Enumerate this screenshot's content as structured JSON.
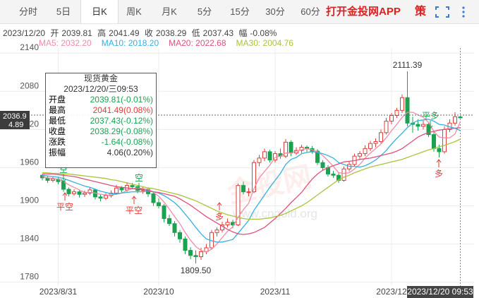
{
  "toolbar": {
    "tabs": [
      "分时",
      "5日",
      "日K",
      "周K",
      "月K",
      "5分",
      "15分",
      "30分",
      "60分"
    ],
    "active": 2,
    "app_link": "打开金投网APP",
    "strategy": "策"
  },
  "quote": {
    "date": "2023/12/20",
    "open_label": "开",
    "high_label": "高",
    "close_label": "收",
    "low_label": "低",
    "change_label": "幅",
    "change": "-0.08%"
  },
  "tooltip": {
    "title": "现货黄金",
    "time": "2023/12/20/三09:53",
    "rows": [
      {
        "label": "开盘",
        "value": "2039.81(-0.01%)",
        "color": "#1aa251"
      },
      {
        "label": "最高",
        "value": "2041.49(0.08%)",
        "color": "#e23c39"
      },
      {
        "label": "最低",
        "value": "2037.43(-0.12%)",
        "color": "#1aa251"
      },
      {
        "label": "收盘",
        "value": "2038.29(-0.08%)",
        "color": "#1aa251"
      },
      {
        "label": "涨跌",
        "value": "-1.64(-0.08%)",
        "color": "#1aa251"
      },
      {
        "label": "振幅",
        "value": "4.06(0.20%)",
        "color": "#333333"
      }
    ]
  },
  "chart_data": {
    "type": "candlestick",
    "categories": [
      null,
      null,
      null,
      "2023/8/31",
      null,
      null,
      null,
      null,
      null,
      null,
      null,
      null,
      null,
      null,
      null,
      null,
      null,
      null,
      null,
      null,
      null,
      null,
      "2023/10",
      null,
      null,
      null,
      null,
      null,
      null,
      null,
      null,
      null,
      null,
      null,
      null,
      null,
      null,
      null,
      null,
      null,
      null,
      null,
      null,
      null,
      "2023/11",
      null,
      null,
      null,
      null,
      null,
      null,
      null,
      null,
      null,
      null,
      null,
      null,
      null,
      null,
      null,
      null,
      null,
      null,
      null,
      null,
      null,
      "2023/12",
      null,
      null,
      null,
      null,
      null,
      null,
      null,
      null,
      null,
      null,
      null,
      null,
      "2023/12/20 09:53"
    ],
    "candles": [
      [
        1948,
        1950,
        1940,
        1944
      ],
      [
        1944,
        1947,
        1936,
        1940
      ],
      [
        1940,
        1946,
        1937,
        1942
      ],
      [
        1942,
        1945,
        1934,
        1938
      ],
      [
        1938,
        1940,
        1922,
        1926
      ],
      [
        1926,
        1929,
        1915,
        1919
      ],
      [
        1919,
        1926,
        1916,
        1922
      ],
      [
        1922,
        1925,
        1913,
        1918
      ],
      [
        1918,
        1924,
        1914,
        1920
      ],
      [
        1920,
        1929,
        1917,
        1925
      ],
      [
        1925,
        1927,
        1910,
        1914
      ],
      [
        1914,
        1918,
        1907,
        1912
      ],
      [
        1912,
        1920,
        1909,
        1916
      ],
      [
        1916,
        1924,
        1913,
        1920
      ],
      [
        1920,
        1933,
        1918,
        1928
      ],
      [
        1928,
        1931,
        1921,
        1925
      ],
      [
        1925,
        1937,
        1922,
        1932
      ],
      [
        1932,
        1936,
        1926,
        1930
      ],
      [
        1930,
        1933,
        1920,
        1924
      ],
      [
        1924,
        1930,
        1919,
        1926
      ],
      [
        1926,
        1929,
        1914,
        1919
      ],
      [
        1919,
        1922,
        1900,
        1905
      ],
      [
        1905,
        1912,
        1896,
        1900
      ],
      [
        1900,
        1903,
        1874,
        1880
      ],
      [
        1880,
        1886,
        1868,
        1872
      ],
      [
        1872,
        1876,
        1852,
        1858
      ],
      [
        1858,
        1862,
        1842,
        1848
      ],
      [
        1848,
        1852,
        1824,
        1830
      ],
      [
        1830,
        1835,
        1816,
        1822
      ],
      [
        1822,
        1830,
        1809.5,
        1820
      ],
      [
        1820,
        1834,
        1815,
        1828
      ],
      [
        1828,
        1840,
        1824,
        1834
      ],
      [
        1834,
        1862,
        1831,
        1858
      ],
      [
        1858,
        1866,
        1852,
        1862
      ],
      [
        1862,
        1875,
        1858,
        1870
      ],
      [
        1870,
        1880,
        1866,
        1874
      ],
      [
        1874,
        1878,
        1865,
        1870
      ],
      [
        1870,
        1935,
        1868,
        1932
      ],
      [
        1932,
        1938,
        1918,
        1922
      ],
      [
        1922,
        1928,
        1915,
        1922
      ],
      [
        1922,
        1972,
        1920,
        1968
      ],
      [
        1968,
        1980,
        1962,
        1975
      ],
      [
        1975,
        1990,
        1970,
        1985
      ],
      [
        1985,
        1988,
        1968,
        1972
      ],
      [
        1972,
        1986,
        1968,
        1982
      ],
      [
        1982,
        1990,
        1974,
        1978
      ],
      [
        1978,
        2005,
        1975,
        2000
      ],
      [
        2000,
        2003,
        1978,
        1983
      ],
      [
        1983,
        1992,
        1980,
        1987
      ],
      [
        1987,
        1996,
        1983,
        1992
      ],
      [
        1992,
        1995,
        1985,
        1990
      ],
      [
        1990,
        1994,
        1982,
        1986
      ],
      [
        1986,
        1989,
        1964,
        1968
      ],
      [
        1968,
        1972,
        1955,
        1960
      ],
      [
        1960,
        1964,
        1946,
        1950
      ],
      [
        1950,
        1955,
        1944,
        1948
      ],
      [
        1948,
        1952,
        1936,
        1940
      ],
      [
        1940,
        1962,
        1938,
        1958
      ],
      [
        1958,
        1970,
        1954,
        1965
      ],
      [
        1965,
        1982,
        1962,
        1978
      ],
      [
        1978,
        1986,
        1974,
        1982
      ],
      [
        1982,
        1995,
        1978,
        1990
      ],
      [
        1990,
        2002,
        1986,
        1998
      ],
      [
        1998,
        2006,
        1992,
        2001
      ],
      [
        2001,
        2020,
        1998,
        2015
      ],
      [
        2015,
        2038,
        2012,
        2033
      ],
      [
        2033,
        2046,
        2028,
        2042
      ],
      [
        2042,
        2054,
        2038,
        2050
      ],
      [
        2050,
        2075,
        2046,
        2070
      ],
      [
        2070,
        2111.39,
        2025,
        2030
      ],
      [
        2030,
        2040,
        2015,
        2028
      ],
      [
        2028,
        2036,
        2018,
        2025
      ],
      [
        2025,
        2034,
        2020,
        2028
      ],
      [
        2028,
        2032,
        2008,
        2012
      ],
      [
        2012,
        2016,
        1985,
        1990
      ],
      [
        1990,
        1996,
        1976,
        1985
      ],
      [
        1985,
        2025,
        1982,
        2020
      ],
      [
        2020,
        2036,
        2016,
        2030
      ],
      [
        2030,
        2047,
        2026,
        2040
      ],
      [
        2039.81,
        2041.49,
        2037.43,
        2038.29
      ]
    ],
    "series": [
      {
        "name": "MA5: 2032.20",
        "color": "#f08ca8",
        "values": [
          1946,
          1944,
          1943,
          1942,
          1938,
          1933,
          1929,
          1925,
          1921,
          1921,
          1920,
          1918,
          1917,
          1917,
          1918,
          1920,
          1924,
          1927,
          1928,
          1927,
          1926,
          1921,
          1915,
          1906,
          1895,
          1883,
          1872,
          1858,
          1846,
          1836,
          1830,
          1827,
          1832,
          1840,
          1850,
          1860,
          1867,
          1882,
          1894,
          1904,
          1927,
          1944,
          1954,
          1964,
          1976,
          1978,
          1983,
          1983,
          1986,
          1988,
          1990,
          1988,
          1985,
          1979,
          1971,
          1962,
          1952,
          1951,
          1952,
          1958,
          1965,
          1975,
          1983,
          1990,
          1997,
          2007,
          2018,
          2028,
          2039,
          2047,
          2047,
          2043,
          2039,
          2031,
          2017,
          2008,
          2007,
          2007,
          2013,
          2032.2
        ]
      },
      {
        "name": "MA10: 2018.20",
        "color": "#35b0e0",
        "values": [
          1948,
          1947,
          1946,
          1945,
          1943,
          1940,
          1937,
          1934,
          1931,
          1929,
          1926,
          1923,
          1921,
          1919,
          1919,
          1920,
          1921,
          1922,
          1922,
          1922,
          1923,
          1922,
          1920,
          1916,
          1911,
          1905,
          1897,
          1887,
          1877,
          1866,
          1856,
          1848,
          1845,
          1843,
          1843,
          1845,
          1847,
          1857,
          1867,
          1877,
          1893,
          1905,
          1917,
          1929,
          1940,
          1951,
          1965,
          1973,
          1976,
          1982,
          1984,
          1985,
          1984,
          1982,
          1979,
          1975,
          1968,
          1965,
          1962,
          1962,
          1961,
          1963,
          1967,
          1972,
          1979,
          1987,
          1997,
          2006,
          2014,
          2023,
          2030,
          2034,
          2035,
          2036,
          2033,
          2028,
          2027,
          2024,
          2022,
          2018.2
        ]
      },
      {
        "name": "MA20: 2022.68",
        "color": "#e0507a",
        "values": [
          1950,
          1950,
          1950,
          1949,
          1948,
          1947,
          1946,
          1944,
          1942,
          1940,
          1938,
          1936,
          1934,
          1932,
          1930,
          1929,
          1928,
          1927,
          1926,
          1925,
          1924,
          1922,
          1921,
          1919,
          1917,
          1915,
          1911,
          1906,
          1901,
          1895,
          1889,
          1883,
          1878,
          1873,
          1868,
          1863,
          1859,
          1856,
          1855,
          1856,
          1858,
          1862,
          1866,
          1873,
          1880,
          1888,
          1896,
          1905,
          1913,
          1921,
          1932,
          1942,
          1950,
          1956,
          1960,
          1963,
          1966,
          1969,
          1970,
          1971,
          1973,
          1974,
          1975,
          1977,
          1979,
          1981,
          1983,
          1986,
          1990,
          1996,
          2002,
          2008,
          2012,
          2015,
          2017,
          2019,
          2020,
          2021,
          2022,
          2022.68
        ]
      },
      {
        "name": "MA30: 2004.76",
        "color": "#a9c33a",
        "values": [
          1952,
          1952,
          1951,
          1951,
          1950,
          1950,
          1949,
          1948,
          1947,
          1946,
          1945,
          1944,
          1943,
          1941,
          1940,
          1938,
          1936,
          1934,
          1932,
          1930,
          1928,
          1927,
          1925,
          1923,
          1921,
          1919,
          1917,
          1914,
          1911,
          1908,
          1904,
          1900,
          1896,
          1892,
          1889,
          1886,
          1884,
          1882,
          1880,
          1879,
          1879,
          1879,
          1880,
          1881,
          1883,
          1885,
          1888,
          1892,
          1896,
          1900,
          1905,
          1911,
          1917,
          1923,
          1929,
          1935,
          1941,
          1945,
          1948,
          1952,
          1955,
          1958,
          1961,
          1963,
          1965,
          1967,
          1969,
          1971,
          1973,
          1976,
          1979,
          1982,
          1985,
          1988,
          1990,
          1993,
          1995,
          1998,
          2001,
          2004.76
        ]
      }
    ],
    "ylim": [
      1774,
      2148
    ],
    "yticks": [
      1780,
      1840,
      1900,
      1960,
      2020,
      2080,
      2140
    ],
    "grid": true,
    "up_color": "#e23c39",
    "down_color": "#1aa251",
    "extremes": [
      {
        "value": 2111.39,
        "label": "2111.39"
      },
      {
        "value": 1809.5,
        "label": "1809.50"
      }
    ],
    "current_price": {
      "price": "2036.9",
      "change": "4.89"
    },
    "signals": [
      {
        "label": "空",
        "color": "#1aa251"
      },
      {
        "label": "平空",
        "color": "#e23c39"
      },
      {
        "label": "空",
        "color": "#1aa251"
      },
      {
        "label": "平空",
        "color": "#e23c39"
      },
      {
        "label": "多",
        "color": "#e23c39"
      },
      {
        "label": "平多",
        "color": "#1aa251"
      },
      {
        "label": "多",
        "color": "#e23c39"
      }
    ],
    "watermark_cn": "金投网",
    "watermark": "www.cngold.org"
  }
}
